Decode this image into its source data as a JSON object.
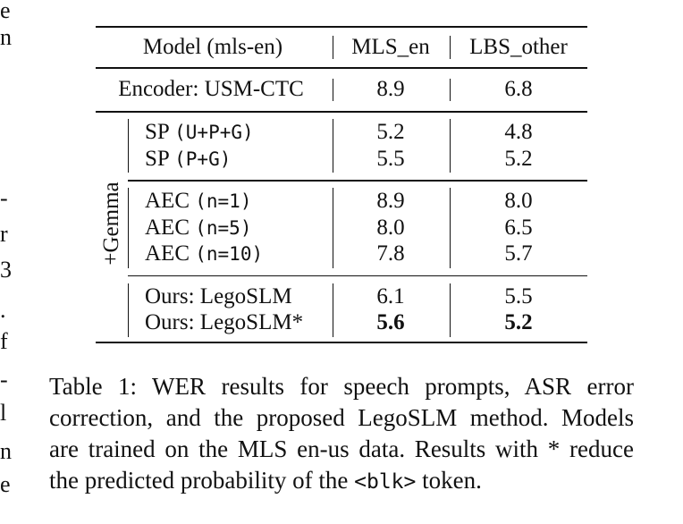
{
  "margin_fragments": [
    "e",
    "n",
    "-",
    "r",
    "3",
    ".",
    "f",
    "-",
    "l",
    "n",
    "e"
  ],
  "table": {
    "header": {
      "model": "Model (mls-en)",
      "columns": [
        "MLS_en",
        "LBS_other"
      ]
    },
    "encoder_row": {
      "model": "Encoder: USM-CTC",
      "values": [
        "8.9",
        "6.8"
      ]
    },
    "group": {
      "label": "+Gemma",
      "blocks": [
        [
          {
            "name": "SP",
            "arg": "(U+P+G)",
            "values": [
              "5.2",
              "4.8"
            ]
          },
          {
            "name": "SP",
            "arg": "(P+G)",
            "values": [
              "5.5",
              "5.2"
            ]
          }
        ],
        [
          {
            "name": "AEC",
            "arg": "(n=1)",
            "values": [
              "8.9",
              "8.0"
            ]
          },
          {
            "name": "AEC",
            "arg": "(n=5)",
            "values": [
              "8.0",
              "6.5"
            ]
          },
          {
            "name": "AEC",
            "arg": "(n=10)",
            "values": [
              "7.8",
              "5.7"
            ]
          }
        ],
        [
          {
            "name": "Ours: LegoSLM",
            "values": [
              "6.1",
              "5.5"
            ]
          },
          {
            "name": "Ours: LegoSLM*",
            "values": [
              "5.6",
              "5.2"
            ],
            "bold_values": true
          }
        ]
      ]
    }
  },
  "caption": {
    "lines": [
      "Table 1: WER results for speech prompts, ASR error",
      "correction, and the proposed LegoSLM method. Models",
      "are trained on the MLS en-us data. Results with * reduce",
      "the predicted probability of the"
    ],
    "code": "<blk>",
    "tail": "token."
  }
}
